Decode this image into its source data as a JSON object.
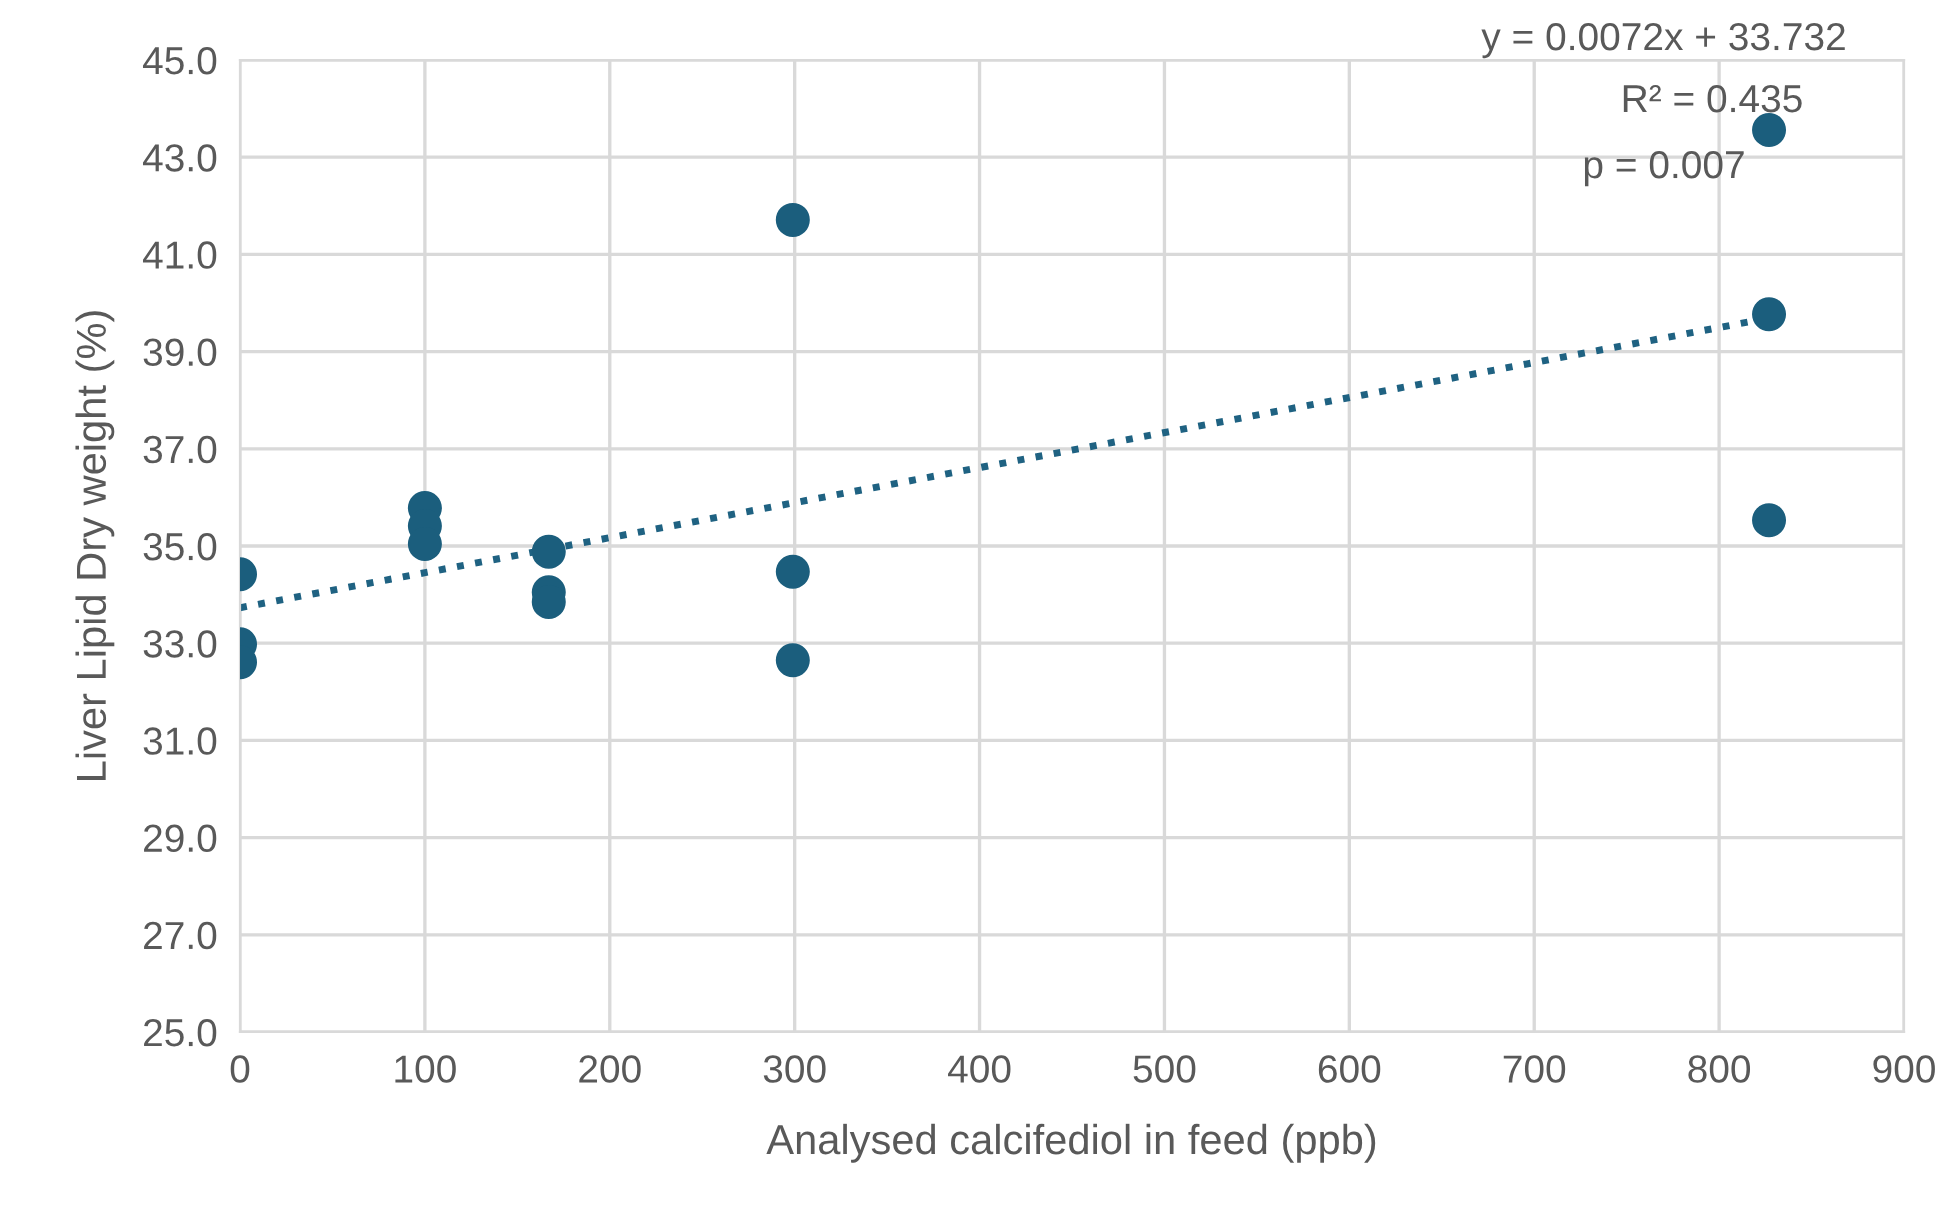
{
  "chart_data": {
    "type": "scatter",
    "xlabel": "Analysed calcifediol in feed (ppb)",
    "ylabel": "Liver Lipid Dry weight (%)",
    "xlim": [
      0,
      900
    ],
    "xticks": [
      0,
      100,
      200,
      300,
      400,
      500,
      600,
      700,
      800,
      900
    ],
    "ylim": [
      25,
      45
    ],
    "yticks": [
      {
        "value": 25,
        "label": "25.0"
      },
      {
        "value": 27,
        "label": "27.0"
      },
      {
        "value": 29,
        "label": "29.0"
      },
      {
        "value": 31,
        "label": "31.0"
      },
      {
        "value": 33,
        "label": "33.0"
      },
      {
        "value": 35,
        "label": "35.0"
      },
      {
        "value": 37,
        "label": "37.0"
      },
      {
        "value": 39,
        "label": "39.0"
      },
      {
        "value": 41,
        "label": "41.0"
      },
      {
        "value": 43,
        "label": "43.0"
      },
      {
        "value": 45,
        "label": "45.0"
      }
    ],
    "grid": true,
    "series": [
      {
        "marker": "circle",
        "color": "#1b5e7d",
        "x": [
          0,
          0,
          0,
          100,
          100,
          100,
          167,
          167,
          167,
          299,
          299,
          299,
          827,
          827,
          827
        ],
        "values": [
          34.42,
          32.98,
          32.61,
          35.78,
          35.41,
          35.04,
          34.88,
          34.05,
          33.85,
          41.71,
          34.47,
          32.65,
          43.56,
          39.77,
          35.53
        ]
      },
      {
        "type": "line",
        "marker": "none",
        "line_style": "dotted",
        "color": "#1f6282",
        "x": [
          0,
          827
        ],
        "values": [
          33.73,
          39.69
        ]
      }
    ],
    "annotations": [
      "y = 0.0072x + 33.732",
      "R² = 0.435",
      "p = 0.007"
    ]
  }
}
